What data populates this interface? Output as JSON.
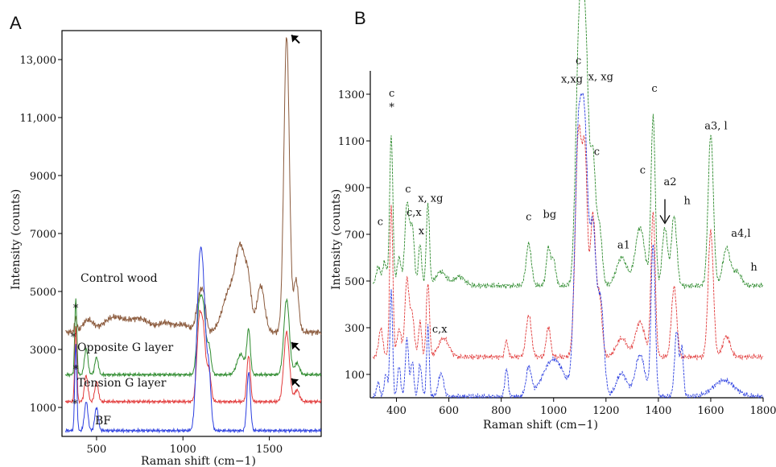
{
  "chart_data": [
    {
      "type": "line",
      "panel": "A",
      "xlabel": "Raman shift (cm−1)",
      "ylabel": "Intensity (counts)",
      "xlim": [
        300,
        1800
      ],
      "ylim": [
        0,
        14000
      ],
      "xticks": [
        500,
        1000,
        1500
      ],
      "yticks": [
        1000,
        3000,
        5000,
        7000,
        9000,
        11000,
        13000
      ],
      "ytick_labels": [
        "1000",
        "3000",
        "5000",
        "7000",
        "9000",
        "11,000",
        "13,000"
      ],
      "grid": false,
      "series": [
        {
          "name": "Control wood",
          "color": "#8b5a3c",
          "base": 3600,
          "scale": 1.0,
          "peaks": [
            [
              1095,
              1100,
              18
            ],
            [
              1120,
              950,
              14
            ],
            [
              1270,
              1400,
              40
            ],
            [
              1335,
              2600,
              28
            ],
            [
              1380,
              1300,
              18
            ],
            [
              1450,
              1600,
              22
            ],
            [
              1600,
              10200,
              16
            ],
            [
              1655,
              1800,
              14
            ],
            [
              380,
              500,
              6
            ],
            [
              450,
              400,
              30
            ],
            [
              600,
              500,
              60
            ],
            [
              750,
              450,
              60
            ],
            [
              900,
              300,
              40
            ],
            [
              1000,
              250,
              40
            ]
          ]
        },
        {
          "name": "Opposite G layer",
          "color": "#2e8b2e",
          "base": 2130,
          "scale": 0.35,
          "peaks": [
            [
              380,
              2600,
              6
            ],
            [
              440,
              900,
              10
            ],
            [
              500,
              600,
              10
            ],
            [
              1095,
              2400,
              14
            ],
            [
              1120,
              1900,
              12
            ],
            [
              1150,
              1000,
              12
            ],
            [
              1335,
              700,
              22
            ],
            [
              1380,
              1500,
              10
            ],
            [
              1600,
              2600,
              16
            ],
            [
              1660,
              400,
              14
            ]
          ]
        },
        {
          "name": "Tension  G layer",
          "color": "#e23b3b",
          "base": 1200,
          "scale": 0.35,
          "peaks": [
            [
              380,
              2600,
              6
            ],
            [
              440,
              900,
              10
            ],
            [
              500,
              700,
              10
            ],
            [
              1095,
              2800,
              14
            ],
            [
              1120,
              2000,
              12
            ],
            [
              1150,
              1100,
              12
            ],
            [
              1380,
              1600,
              10
            ],
            [
              1600,
              2400,
              16
            ],
            [
              1660,
              400,
              14
            ]
          ]
        },
        {
          "name": "BF",
          "color": "#2c3fe0",
          "base": 200,
          "scale": 0.35,
          "peaks": [
            [
              380,
              3000,
              6
            ],
            [
              440,
              1000,
              10
            ],
            [
              500,
              800,
              10
            ],
            [
              1095,
              5200,
              16
            ],
            [
              1120,
              3600,
              14
            ],
            [
              1150,
              2000,
              12
            ],
            [
              1380,
              2000,
              10
            ]
          ]
        }
      ],
      "annotations": [
        {
          "text": "*",
          "x": 380,
          "y": 4300
        },
        {
          "text": "*",
          "x": 365,
          "y": 3300
        },
        {
          "text": "*",
          "x": 380,
          "y": 2200
        },
        {
          "text": "*",
          "x": 375,
          "y": 1000
        }
      ],
      "arrows": [
        {
          "x": 1600,
          "y": 13900
        },
        {
          "x": 1600,
          "y": 3300
        },
        {
          "x": 1600,
          "y": 2050
        }
      ]
    },
    {
      "type": "line",
      "panel": "B",
      "xlabel": "Raman shift (cm−1)",
      "ylabel": "Intensity (counts)",
      "xlim": [
        300,
        1800
      ],
      "ylim": [
        0,
        1400
      ],
      "xticks": [
        400,
        600,
        800,
        1000,
        1200,
        1400,
        1600,
        1800
      ],
      "yticks": [
        100,
        300,
        500,
        700,
        900,
        1100,
        1300
      ],
      "grid": false,
      "series": [
        {
          "color": "#2e8b2e",
          "base": 480,
          "peaks": [
            [
              330,
              80,
              8
            ],
            [
              355,
              100,
              8
            ],
            [
              380,
              650,
              6
            ],
            [
              410,
              120,
              8
            ],
            [
              440,
              350,
              8
            ],
            [
              460,
              250,
              8
            ],
            [
              490,
              180,
              6
            ],
            [
              520,
              350,
              6
            ],
            [
              570,
              60,
              20
            ],
            [
              640,
              40,
              20
            ],
            [
              905,
              180,
              10
            ],
            [
              980,
              160,
              8
            ],
            [
              1000,
              110,
              8
            ],
            [
              1095,
              900,
              12
            ],
            [
              1110,
              650,
              10
            ],
            [
              1125,
              800,
              10
            ],
            [
              1150,
              550,
              10
            ],
            [
              1175,
              250,
              10
            ],
            [
              1260,
              120,
              20
            ],
            [
              1330,
              250,
              18
            ],
            [
              1380,
              720,
              8
            ],
            [
              1425,
              250,
              10
            ],
            [
              1460,
              300,
              10
            ],
            [
              1600,
              650,
              10
            ],
            [
              1660,
              160,
              14
            ],
            [
              1700,
              60,
              16
            ]
          ]
        },
        {
          "color": "#e23b3b",
          "base": 175,
          "peaks": [
            [
              340,
              120,
              8
            ],
            [
              380,
              650,
              6
            ],
            [
              410,
              120,
              8
            ],
            [
              440,
              330,
              8
            ],
            [
              460,
              180,
              8
            ],
            [
              490,
              150,
              6
            ],
            [
              520,
              320,
              6
            ],
            [
              580,
              80,
              20
            ],
            [
              820,
              70,
              6
            ],
            [
              905,
              180,
              10
            ],
            [
              980,
              130,
              8
            ],
            [
              1095,
              950,
              12
            ],
            [
              1120,
              800,
              10
            ],
            [
              1150,
              600,
              10
            ],
            [
              1175,
              250,
              10
            ],
            [
              1260,
              80,
              20
            ],
            [
              1330,
              150,
              18
            ],
            [
              1380,
              620,
              8
            ],
            [
              1460,
              300,
              10
            ],
            [
              1600,
              540,
              10
            ],
            [
              1660,
              90,
              14
            ]
          ]
        },
        {
          "color": "#2c3fe0",
          "base": 5,
          "peaks": [
            [
              330,
              60,
              6
            ],
            [
              360,
              100,
              6
            ],
            [
              380,
              460,
              5
            ],
            [
              410,
              130,
              6
            ],
            [
              440,
              250,
              6
            ],
            [
              460,
              150,
              6
            ],
            [
              490,
              140,
              6
            ],
            [
              520,
              300,
              5
            ],
            [
              570,
              100,
              10
            ],
            [
              820,
              120,
              6
            ],
            [
              905,
              120,
              10
            ],
            [
              1000,
              160,
              40
            ],
            [
              1095,
              1100,
              14
            ],
            [
              1120,
              950,
              12
            ],
            [
              1150,
              700,
              12
            ],
            [
              1180,
              400,
              12
            ],
            [
              1260,
              100,
              20
            ],
            [
              1330,
              180,
              18
            ],
            [
              1380,
              650,
              8
            ],
            [
              1470,
              280,
              8
            ],
            [
              1490,
              200,
              6
            ],
            [
              1650,
              70,
              40
            ]
          ]
        }
      ],
      "annotations": [
        {
          "text": "c",
          "x": 338,
          "y": 740
        },
        {
          "text": "c",
          "x": 382,
          "y": 1290
        },
        {
          "text": "*",
          "x": 382,
          "y": 1230
        },
        {
          "text": "c",
          "x": 444,
          "y": 880
        },
        {
          "text": "c,x",
          "x": 467,
          "y": 780
        },
        {
          "text": "x, xg",
          "x": 530,
          "y": 840
        },
        {
          "text": "x",
          "x": 495,
          "y": 700
        },
        {
          "text": "c,x",
          "x": 565,
          "y": 280
        },
        {
          "text": "c",
          "x": 905,
          "y": 760
        },
        {
          "text": "bg",
          "x": 985,
          "y": 770
        },
        {
          "text": "c",
          "x": 1095,
          "y": 1430
        },
        {
          "text": "x,xg",
          "x": 1070,
          "y": 1350
        },
        {
          "text": "x, xg",
          "x": 1180,
          "y": 1360
        },
        {
          "text": "c",
          "x": 1165,
          "y": 1040
        },
        {
          "text": "a1",
          "x": 1268,
          "y": 640
        },
        {
          "text": "c",
          "x": 1340,
          "y": 960
        },
        {
          "text": "c",
          "x": 1385,
          "y": 1310
        },
        {
          "text": "a2",
          "x": 1445,
          "y": 910
        },
        {
          "text": "h",
          "x": 1510,
          "y": 830
        },
        {
          "text": "a3, l",
          "x": 1620,
          "y": 1150
        },
        {
          "text": "a4,l",
          "x": 1715,
          "y": 690
        },
        {
          "text": "h",
          "x": 1765,
          "y": 545
        }
      ],
      "arrows": [
        {
          "x": 1425,
          "y": 740
        }
      ]
    }
  ]
}
